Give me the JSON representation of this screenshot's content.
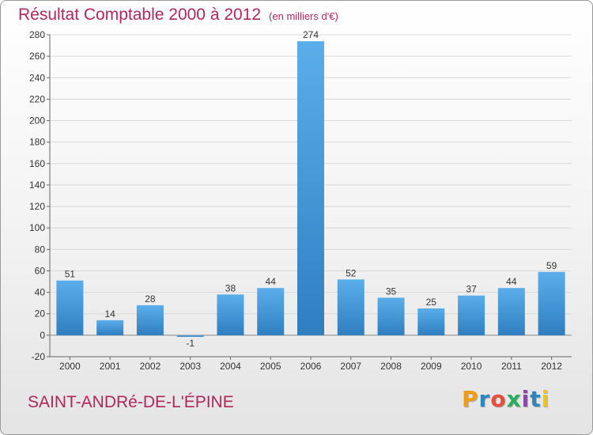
{
  "title": "Résultat Comptable 2000 à 2012",
  "subtitle": "(en milliers d'€)",
  "commune": "SAINT-ANDRé-DE-L'ÉPINE",
  "logo": {
    "letters": [
      "P",
      "r",
      "o",
      "x",
      "i",
      "t",
      "i"
    ],
    "colors": [
      "#f39c12",
      "#2e86c1",
      "#e74c3c",
      "#27ae60",
      "#8e44ad",
      "#2e86c1",
      "#f1c40f"
    ]
  },
  "colors": {
    "bar": "#3d93d6",
    "title": "#b0275a"
  },
  "chart_data": {
    "type": "bar",
    "categories": [
      "2000",
      "2001",
      "2002",
      "2003",
      "2004",
      "2005",
      "2006",
      "2007",
      "2008",
      "2009",
      "2010",
      "2011",
      "2012"
    ],
    "values": [
      51,
      14,
      28,
      -1,
      38,
      44,
      274,
      52,
      35,
      25,
      37,
      44,
      59
    ],
    "data_labels": [
      "51",
      "14",
      "28",
      "-1",
      "38",
      "44",
      "274",
      "52",
      "35",
      "25",
      "37",
      "44",
      "59"
    ],
    "ylim": [
      -20,
      280
    ],
    "yticks": [
      -20,
      0,
      20,
      40,
      60,
      80,
      100,
      120,
      140,
      160,
      180,
      200,
      220,
      240,
      260,
      280
    ],
    "grid": true,
    "xlabel": "",
    "ylabel": ""
  }
}
